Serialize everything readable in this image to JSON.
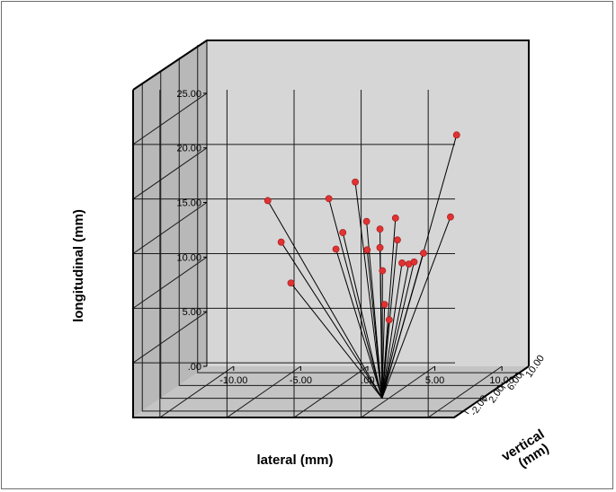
{
  "chart_data": {
    "type": "scatter",
    "projection": "3d",
    "xlabel": "lateral (mm)",
    "ylabel": "longitudinal (mm)",
    "zlabel": "vertical (mm)",
    "x_ticks": [
      "-10.00",
      "-5.00",
      ".00",
      "5.00",
      "10.00"
    ],
    "y_ticks": [
      ".00",
      "5.00",
      "10.00",
      "15.00",
      "20.00",
      "25.00"
    ],
    "z_ticks": [
      "-2.00",
      "2.00",
      "6.00",
      "10.00"
    ],
    "xlim": [
      -12,
      12
    ],
    "ylim": [
      0,
      30
    ],
    "zlim": [
      -4,
      12
    ],
    "grid": true,
    "marker_color": "#e03232",
    "spoke_origin": {
      "x": 4.5,
      "y": 0,
      "z": 2
    },
    "points": [
      {
        "x": -6.6,
        "y": 15.9,
        "z": 9.5
      },
      {
        "x": -5.6,
        "y": 12.1,
        "z": 9.5
      },
      {
        "x": -4.7,
        "y": 8.5,
        "z": 9.0
      },
      {
        "x": -0.5,
        "y": 17.4,
        "z": 5.0
      },
      {
        "x": -1.0,
        "y": 11.9,
        "z": 8.0
      },
      {
        "x": 0.2,
        "y": 14.0,
        "z": 6.0
      },
      {
        "x": 2.5,
        "y": 19.8,
        "z": 2.0
      },
      {
        "x": 3.0,
        "y": 15.9,
        "z": 3.0
      },
      {
        "x": 2.7,
        "y": 13.0,
        "z": 4.0
      },
      {
        "x": 3.5,
        "y": 10.8,
        "z": 5.0
      },
      {
        "x": 4.0,
        "y": 15.2,
        "z": 3.0
      },
      {
        "x": 4.0,
        "y": 13.5,
        "z": 3.0
      },
      {
        "x": 4.0,
        "y": 8.0,
        "z": 4.0
      },
      {
        "x": 4.0,
        "y": 6.3,
        "z": 5.0
      },
      {
        "x": 5.5,
        "y": 16.5,
        "z": 2.0
      },
      {
        "x": 5.3,
        "y": 14.2,
        "z": 3.0
      },
      {
        "x": 5.3,
        "y": 11.8,
        "z": 4.0
      },
      {
        "x": 5.8,
        "y": 11.7,
        "z": 4.0
      },
      {
        "x": 6.2,
        "y": 11.9,
        "z": 4.0
      },
      {
        "x": 6.9,
        "y": 12.7,
        "z": 4.0
      },
      {
        "x": 9.6,
        "y": 16.6,
        "z": 2.0
      },
      {
        "x": 10.4,
        "y": 24.4,
        "z": 1.0
      }
    ]
  }
}
